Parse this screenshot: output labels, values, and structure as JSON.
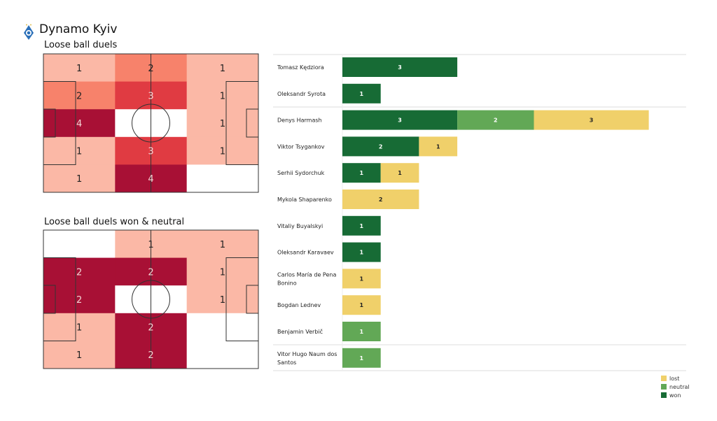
{
  "header": {
    "team": "Dynamo Kyiv",
    "logo_icon": "dynamo-kyiv-crest"
  },
  "colors": {
    "won": "#176b35",
    "neutral": "#62a856",
    "lost": "#f0d06a",
    "heat": [
      "#ffffff",
      "#fbb8a6",
      "#f7826b",
      "#e03b42",
      "#a81035"
    ]
  },
  "chart_data": [
    {
      "type": "heatmap",
      "title": "Loose ball duels",
      "grid_cols": 3,
      "grid_rows": 5,
      "values": [
        [
          1,
          2,
          1
        ],
        [
          2,
          3,
          1
        ],
        [
          4,
          0,
          1
        ],
        [
          1,
          3,
          1
        ],
        [
          1,
          4,
          0
        ]
      ],
      "labels": [
        [
          "1",
          "2",
          "1"
        ],
        [
          "2",
          "3",
          "1"
        ],
        [
          "4",
          "",
          "1"
        ],
        [
          "1",
          "3",
          "1"
        ],
        [
          "1",
          "4",
          ""
        ]
      ]
    },
    {
      "type": "heatmap",
      "title": "Loose ball duels won & neutral",
      "grid_cols": 3,
      "grid_rows": 5,
      "values": [
        [
          0,
          1,
          1
        ],
        [
          2,
          2,
          1
        ],
        [
          2,
          0,
          1
        ],
        [
          1,
          2,
          0
        ],
        [
          1,
          2,
          0
        ]
      ],
      "labels": [
        [
          "",
          "1",
          "1"
        ],
        [
          "2",
          "2",
          "1"
        ],
        [
          "2",
          "",
          "1"
        ],
        [
          "1",
          "2",
          ""
        ],
        [
          "1",
          "2",
          ""
        ]
      ]
    },
    {
      "type": "bar",
      "stacked": true,
      "orientation": "horizontal",
      "categories": [
        "Tomasz Kędziora",
        "Oleksandr Syrota",
        "Denys Harmash",
        "Viktor Tsygankov",
        "Serhii Sydorchuk",
        "Mykola Shaparenko",
        "Vitaliy Buyalskyi",
        "Oleksandr Karavaev",
        "Carlos María de Pena Bonino",
        "Bogdan Lednev",
        "Benjamin Verbič",
        "Vitor Hugo Naum dos Santos"
      ],
      "series": [
        {
          "name": "won",
          "values": [
            3,
            1,
            3,
            2,
            1,
            0,
            1,
            1,
            0,
            0,
            0,
            0
          ]
        },
        {
          "name": "neutral",
          "values": [
            0,
            0,
            2,
            0,
            0,
            0,
            0,
            0,
            0,
            0,
            1,
            1
          ]
        },
        {
          "name": "lost",
          "values": [
            0,
            0,
            3,
            1,
            1,
            2,
            0,
            0,
            1,
            1,
            0,
            0
          ]
        }
      ],
      "legend": [
        "lost",
        "neutral",
        "won"
      ],
      "legend_position": "bottom-right"
    }
  ]
}
